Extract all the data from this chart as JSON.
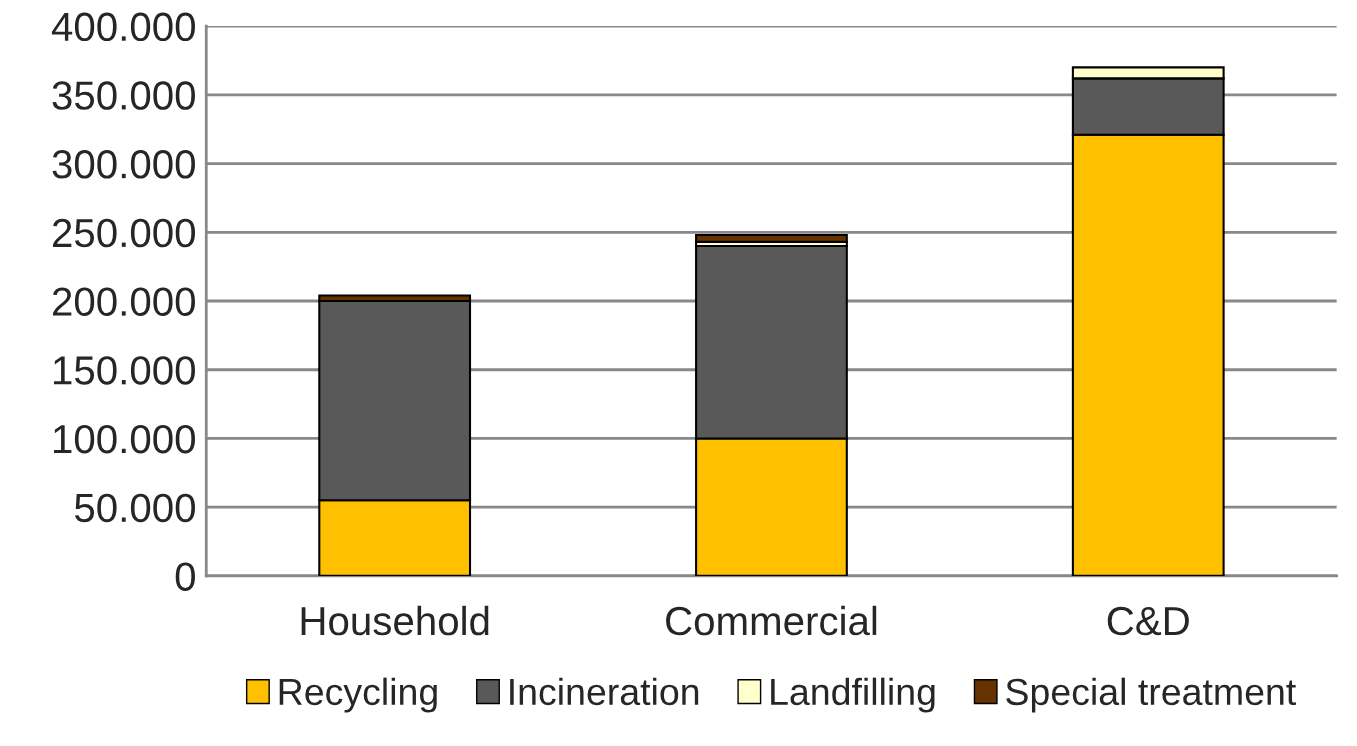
{
  "chart_data": {
    "type": "bar",
    "stacked": true,
    "categories": [
      "Household",
      "Commercial",
      "C&D"
    ],
    "series": [
      {
        "name": "Recycling",
        "color": "#ffc000",
        "values": [
          55000,
          100000,
          321000
        ]
      },
      {
        "name": "Incineration",
        "color": "#595959",
        "values": [
          145000,
          140000,
          41000
        ]
      },
      {
        "name": "Landfilling",
        "color": "#ffffcc",
        "values": [
          null,
          3000,
          8000
        ]
      },
      {
        "name": "Special treatment",
        "color": "#663300",
        "values": [
          4000,
          5000,
          null
        ]
      }
    ],
    "ylim": [
      0,
      400000
    ],
    "yticks": [
      0,
      {
        "value": 50000,
        "label": "50.000"
      },
      {
        "value": 100000,
        "label": "100.000"
      },
      {
        "value": 150000,
        "label": "150.000"
      },
      {
        "value": 200000,
        "label": "200.000"
      },
      {
        "value": 250000,
        "label": "250.000"
      },
      {
        "value": 300000,
        "label": "300.000"
      },
      {
        "value": 350000,
        "label": "350.000"
      },
      {
        "value": 400000,
        "label": "400.000"
      }
    ],
    "grid": "y",
    "legend": "bottom"
  }
}
